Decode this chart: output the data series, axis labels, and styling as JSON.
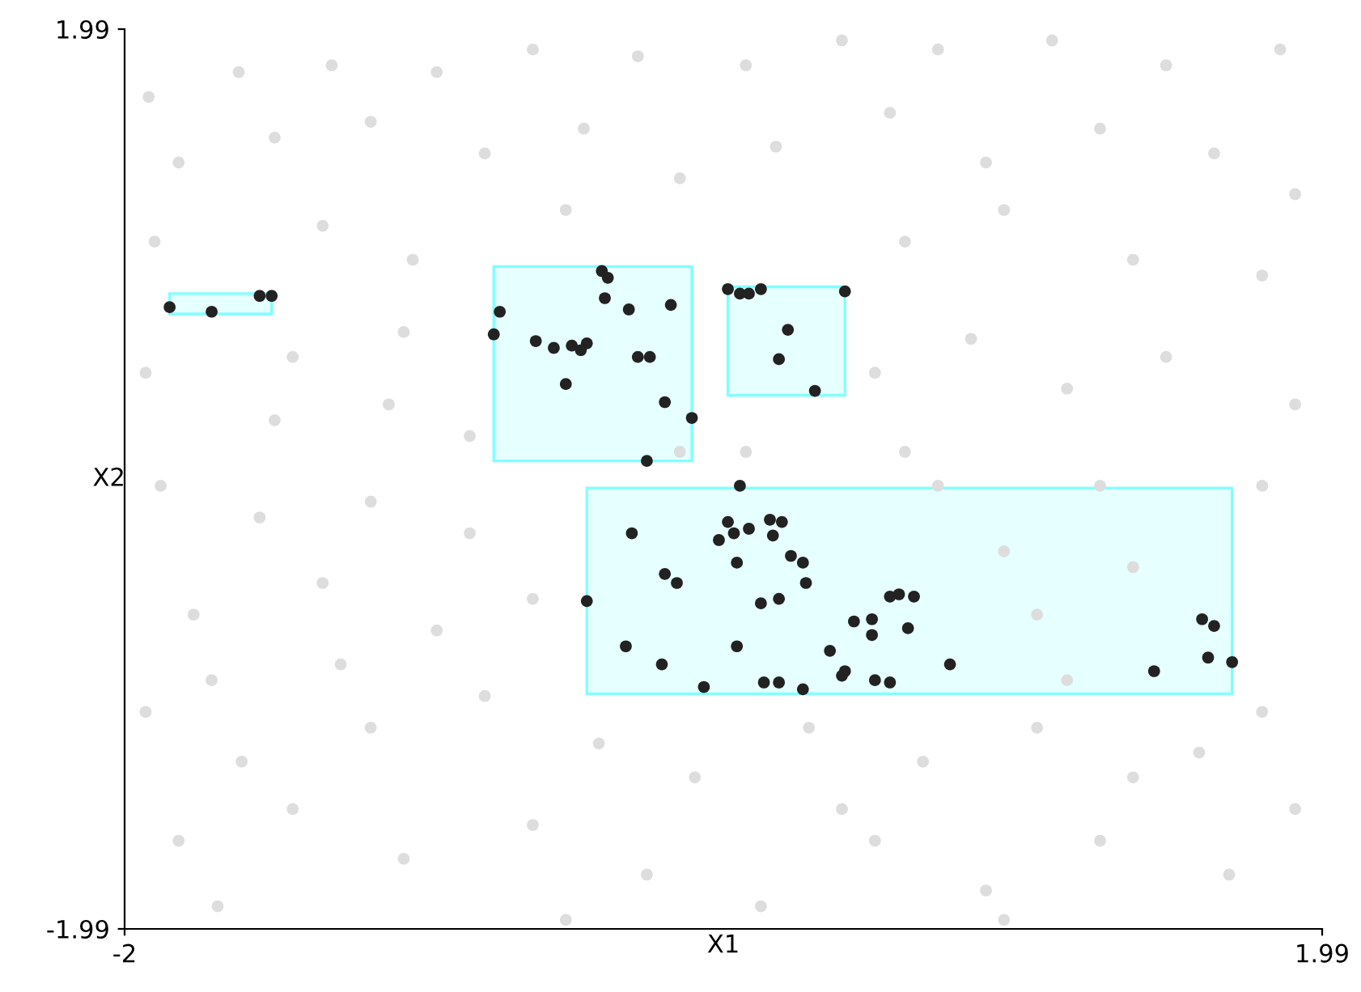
{
  "chart_data": {
    "type": "scatter",
    "xlabel": "X1",
    "ylabel": "X2",
    "xlim": [
      -2,
      1.99
    ],
    "ylim": [
      -1.99,
      1.99
    ],
    "xticks": [
      -2,
      1.99
    ],
    "yticks": [
      -1.99,
      1.99
    ],
    "grid": false,
    "legend": false,
    "series": [
      {
        "type": "area",
        "color": "#80ffff",
        "x": [
          -1.85,
          -1.51,
          -1.51,
          -1.85,
          -1.85
        ],
        "values": [
          0.82,
          0.82,
          0.73,
          0.73,
          0.82
        ]
      },
      {
        "type": "area",
        "color": "#80ffff",
        "x": [
          -0.77,
          -0.11,
          -0.11,
          -0.77,
          -0.77
        ],
        "values": [
          0.94,
          0.94,
          0.08,
          0.08,
          0.94
        ]
      },
      {
        "type": "area",
        "color": "#80ffff",
        "x": [
          0.01,
          0.4,
          0.4,
          0.01,
          0.01
        ],
        "values": [
          0.85,
          0.85,
          0.37,
          0.37,
          0.85
        ]
      },
      {
        "type": "area",
        "color": "#80ffff",
        "x": [
          -0.46,
          1.69,
          1.69,
          -0.46,
          -0.46
        ],
        "values": [
          -0.04,
          -0.04,
          -0.95,
          -0.95,
          -0.04
        ]
      },
      {
        "marker": "circle",
        "color": "#dddddd",
        "x": [
          -1.92,
          -1.62,
          -1.31,
          -0.96,
          -0.64,
          -0.29,
          0.07,
          0.39,
          0.71,
          1.09,
          1.47,
          1.85,
          -1.82,
          -1.5,
          -1.18,
          -0.8,
          -0.47,
          -0.15,
          0.17,
          0.55,
          0.87,
          1.25,
          1.63,
          1.9,
          -1.9,
          -1.34,
          -1.04,
          0.6,
          0.93,
          1.36,
          1.79,
          -1.93,
          -1.44,
          -1.12,
          -0.85,
          0.5,
          0.82,
          1.14,
          1.47,
          1.9,
          -1.88,
          -1.55,
          -1.18,
          -0.85,
          1.79,
          -1.77,
          -1.34,
          -0.96,
          -0.64,
          -1.93,
          -1.61,
          -1.18,
          -0.8,
          -0.42,
          -0.1,
          0.28,
          0.66,
          1.04,
          1.36,
          1.79,
          -1.82,
          -1.44,
          -1.07,
          -0.64,
          -0.26,
          0.12,
          0.5,
          0.87,
          1.25,
          1.68,
          1.9,
          -1.69,
          -0.53,
          0.93,
          1.58,
          1.25,
          0.93,
          1.36,
          -1.5,
          0.07,
          -0.53,
          -0.15,
          0.6,
          -1.07,
          1.14,
          -1.71,
          -1.28,
          0.39,
          0.71,
          1.04
        ],
        "values": [
          1.69,
          1.8,
          1.83,
          1.8,
          1.9,
          1.87,
          1.83,
          1.94,
          1.9,
          1.94,
          1.83,
          1.9,
          1.4,
          1.51,
          1.58,
          1.44,
          1.55,
          1.33,
          1.47,
          1.62,
          1.4,
          1.55,
          1.44,
          1.26,
          1.05,
          1.12,
          0.97,
          1.05,
          1.19,
          0.97,
          0.9,
          0.47,
          0.54,
          0.33,
          0.19,
          0.47,
          0.62,
          0.4,
          0.54,
          0.33,
          -0.03,
          -0.17,
          -0.1,
          -0.24,
          -0.03,
          -0.6,
          -0.46,
          -0.67,
          -0.53,
          -1.03,
          -1.25,
          -1.1,
          -0.96,
          -1.17,
          -1.32,
          -1.1,
          -1.25,
          -1.1,
          -1.32,
          -1.03,
          -1.6,
          -1.46,
          -1.68,
          -1.53,
          -1.75,
          -1.89,
          -1.6,
          -1.82,
          -1.6,
          -1.75,
          -1.46,
          -1.89,
          -1.95,
          -1.95,
          -1.21,
          -0.03,
          -0.32,
          -0.39,
          0.26,
          0.12,
          1.19,
          0.12,
          0.12,
          0.65,
          -0.89,
          -0.89,
          -0.82,
          -1.46,
          -0.03,
          -0.6
        ]
      },
      {
        "marker": "circle",
        "color": "#222222",
        "x": [
          -1.85,
          -1.71,
          -1.55,
          -1.51,
          -0.75,
          -0.77,
          -0.41,
          -0.39,
          -0.4,
          -0.32,
          -0.18,
          -0.63,
          -0.57,
          -0.51,
          -0.48,
          -0.46,
          -0.29,
          -0.25,
          -0.53,
          -0.2,
          -0.11,
          -0.26,
          0.01,
          0.05,
          0.08,
          0.12,
          0.4,
          0.21,
          0.18,
          0.3,
          0.05,
          0.01,
          0.03,
          0.08,
          0.15,
          0.19,
          -0.02,
          0.04,
          0.16,
          0.22,
          0.26,
          0.27,
          -0.31,
          -0.2,
          -0.16,
          -0.46,
          -0.33,
          -0.21,
          -0.07,
          0.04,
          0.12,
          0.18,
          0.13,
          0.18,
          0.26,
          0.35,
          0.39,
          0.4,
          0.43,
          0.49,
          0.49,
          0.5,
          0.55,
          0.55,
          0.58,
          0.63,
          0.61,
          0.75,
          1.43,
          1.59,
          1.63,
          1.61,
          1.69
        ],
        "values": [
          0.76,
          0.74,
          0.81,
          0.81,
          0.74,
          0.64,
          0.92,
          0.89,
          0.8,
          0.75,
          0.77,
          0.61,
          0.58,
          0.59,
          0.57,
          0.6,
          0.54,
          0.54,
          0.42,
          0.34,
          0.27,
          0.08,
          0.84,
          0.82,
          0.82,
          0.84,
          0.83,
          0.66,
          0.53,
          0.39,
          -0.03,
          -0.19,
          -0.24,
          -0.22,
          -0.18,
          -0.19,
          -0.27,
          -0.37,
          -0.25,
          -0.34,
          -0.37,
          -0.46,
          -0.24,
          -0.42,
          -0.46,
          -0.54,
          -0.74,
          -0.82,
          -0.92,
          -0.74,
          -0.55,
          -0.53,
          -0.9,
          -0.9,
          -0.93,
          -0.76,
          -0.87,
          -0.85,
          -0.63,
          -0.62,
          -0.69,
          -0.89,
          -0.9,
          -0.52,
          -0.51,
          -0.52,
          -0.66,
          -0.82,
          -0.85,
          -0.62,
          -0.65,
          -0.79,
          -0.81
        ]
      }
    ]
  }
}
